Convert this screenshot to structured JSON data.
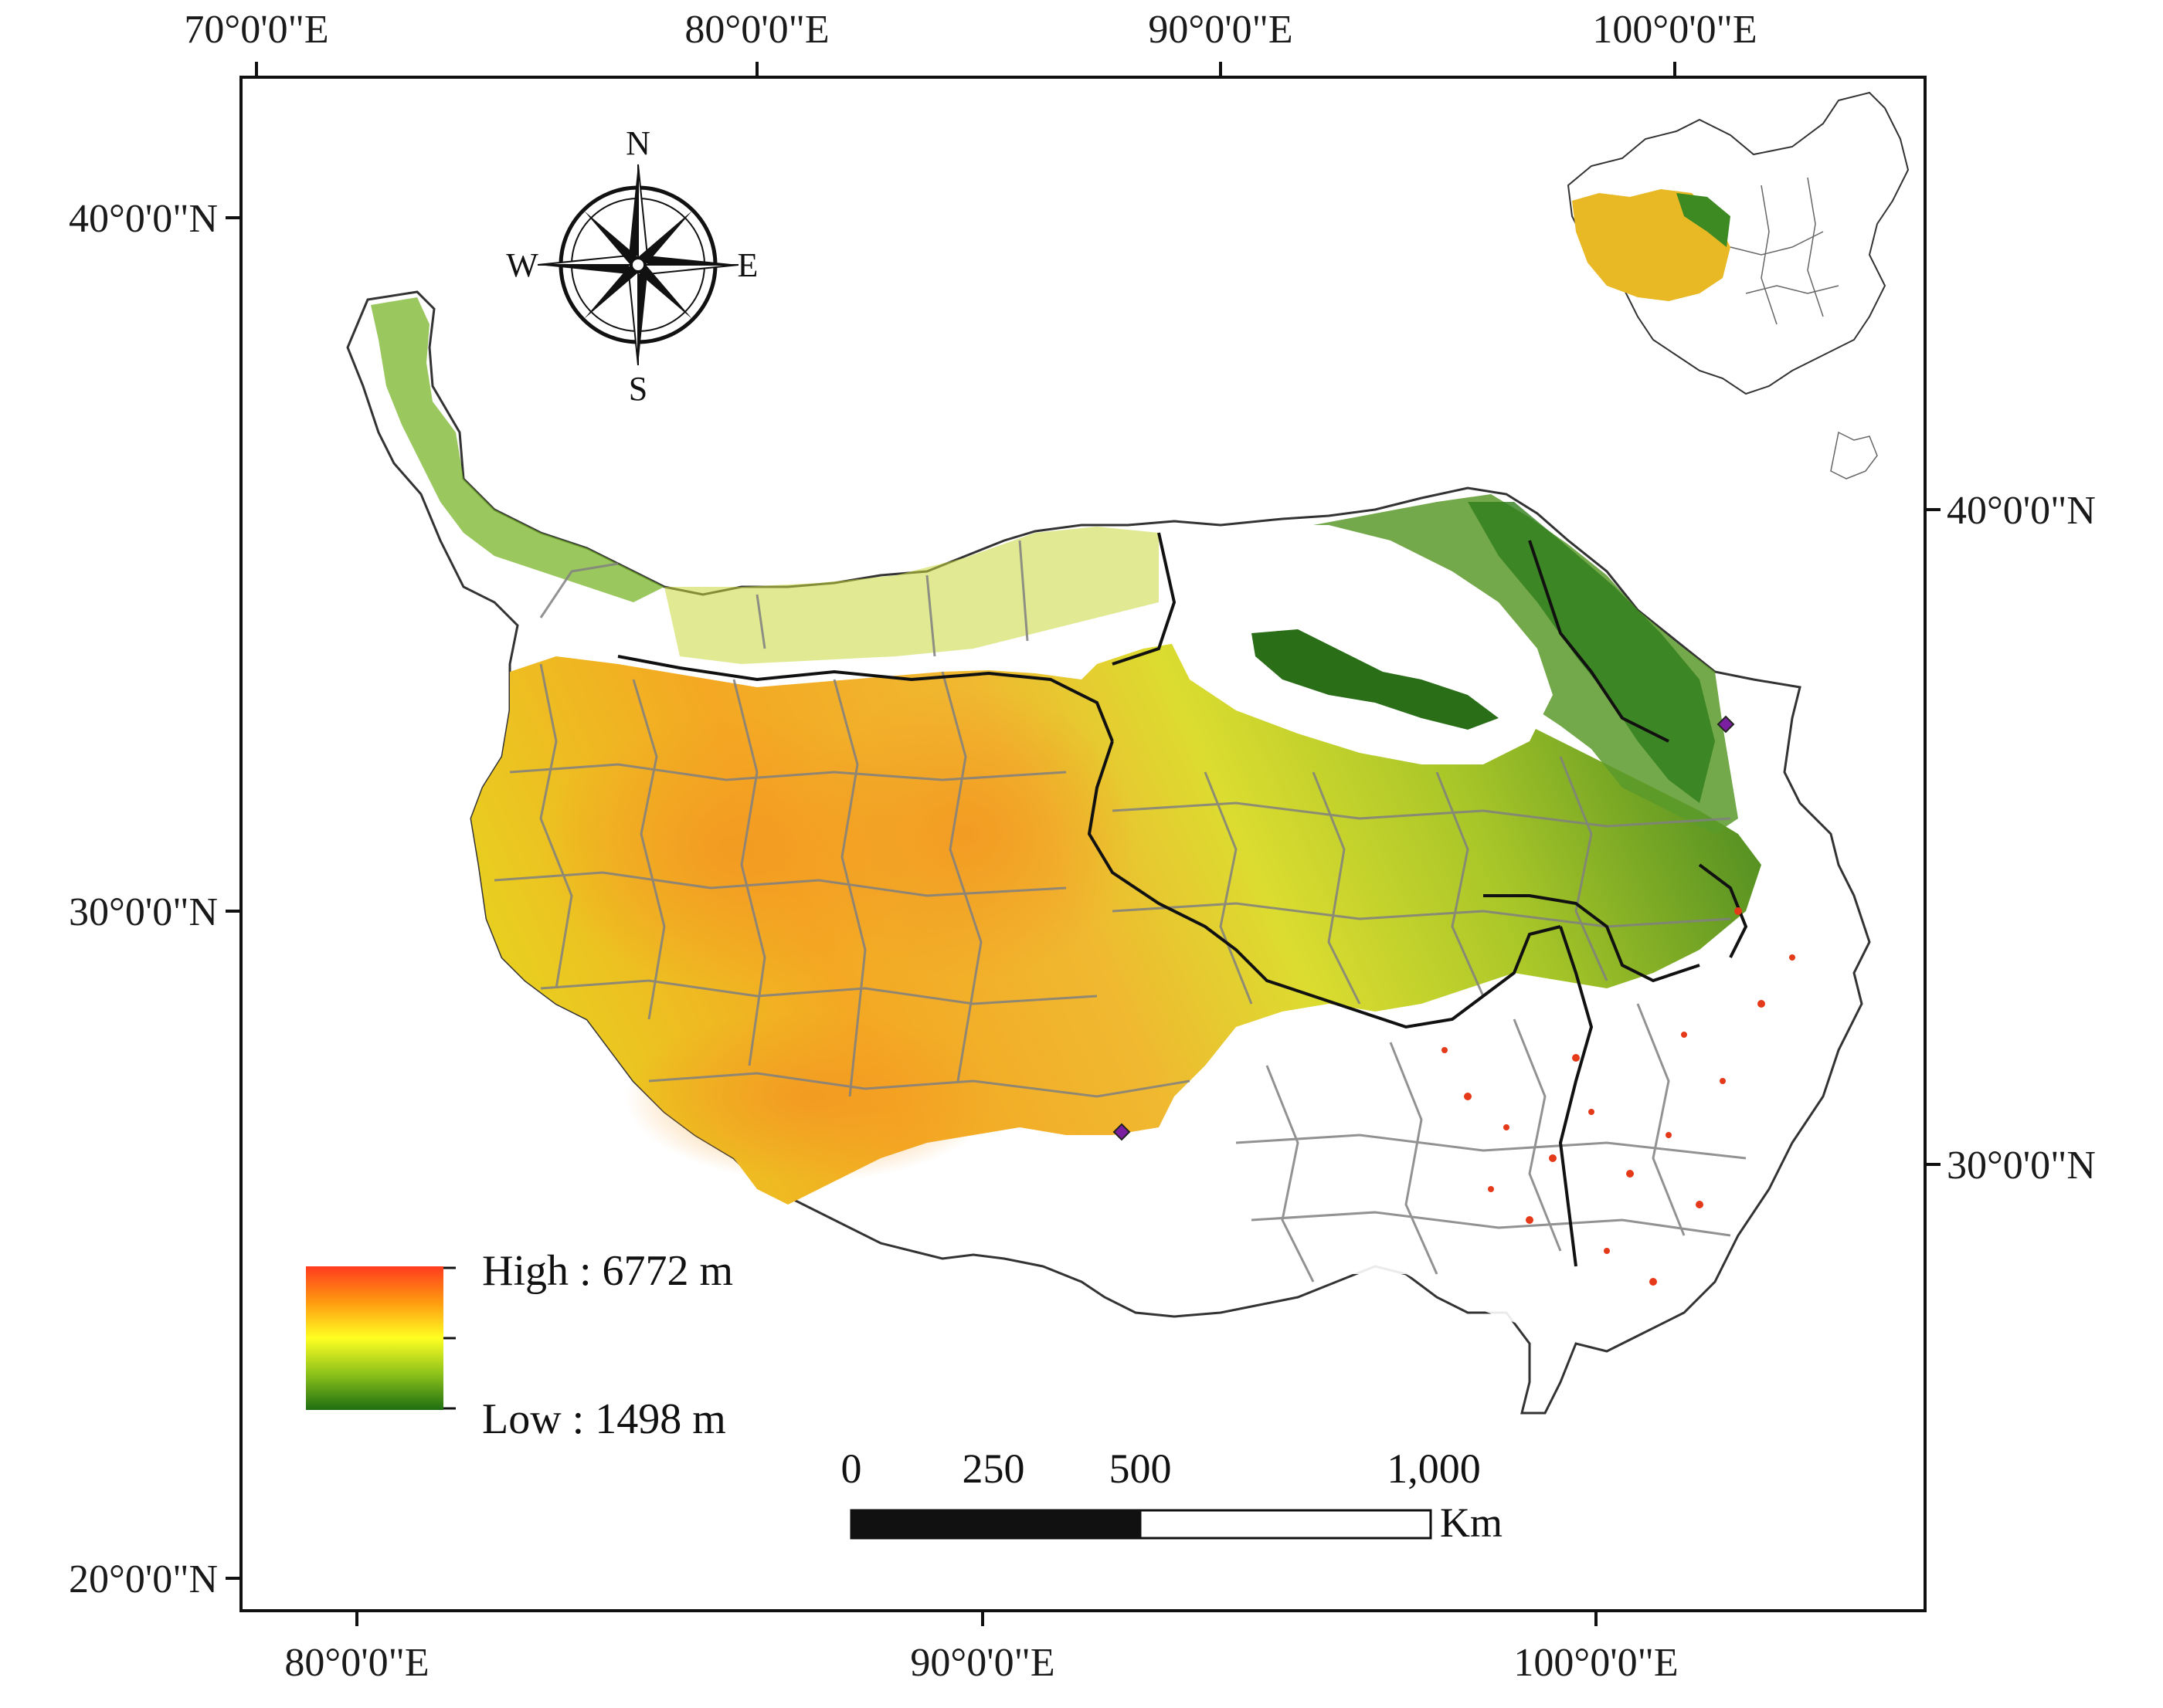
{
  "frame": {
    "top_ticks": [
      "70°0'0\"E",
      "80°0'0\"E",
      "90°0'0\"E",
      "100°0'0\"E"
    ],
    "bottom_ticks": [
      "80°0'0\"E",
      "90°0'0\"E",
      "100°0'0\"E"
    ],
    "left_ticks": [
      "40°0'0\"N",
      "30°0'0\"N",
      "20°0'0\"N"
    ],
    "right_ticks": [
      "40°0'0\"N",
      "30°0'0\"N"
    ]
  },
  "compass": {
    "north": "N",
    "south": "S",
    "east": "E",
    "west": "W"
  },
  "legend": {
    "high_label": "High : 6772 m",
    "low_label": "Low : 1498 m",
    "colors": [
      "#ff3b1e",
      "#ff9a10",
      "#ffff22",
      "#8cc21a",
      "#1e6e12"
    ]
  },
  "scale_bar": {
    "labels": [
      "0",
      "250",
      "500",
      "1,000"
    ],
    "unit": "Km",
    "segment_values_km": [
      0,
      500,
      1000
    ]
  },
  "colors": {
    "high_orange": "#f0a020",
    "mid_yellow": "#e6e22a",
    "low_green": "#2f7d1b",
    "boundary_gray": "#808080",
    "boundary_black": "#111111"
  },
  "markers": [
    "site-lhasa",
    "site-xining"
  ]
}
